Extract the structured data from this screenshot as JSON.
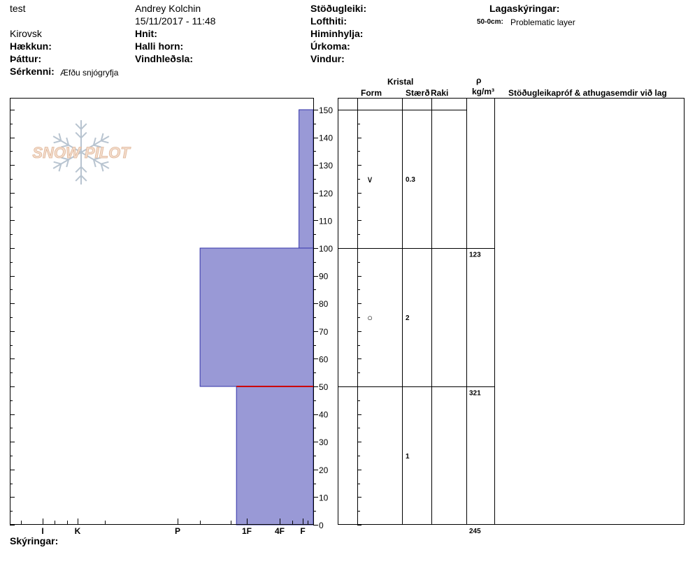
{
  "header": {
    "site": "test",
    "observer": "Andrey Kolchin",
    "datetime": "15/11/2017 - 11:48",
    "location": "Kirovsk",
    "elevation_label": "Hækkun:",
    "aspect_label": "Þáttur:",
    "features_label": "Sérkenni:",
    "features_value": "Æfðu snjógryfja",
    "coords_label": "Hnit:",
    "slope_label": "Halli horn:",
    "wind_loading_label": "Vindhleðsla:",
    "stability_label": "Stöðugleiki:",
    "air_temp_label": "Lofthiti:",
    "sky_label": "Himinhylja:",
    "precip_label": "Úrkoma:",
    "wind_label": "Vindur:",
    "legend_title": "Lagaskýringar:",
    "legend_range": "50-0cm:",
    "legend_text": "Problematic layer"
  },
  "columns": {
    "kristal": "Kristal",
    "form": "Form",
    "size": "Stærð",
    "wetness": "Raki",
    "rho": "ρ",
    "density_unit": "kg/m³",
    "comments": "Stöðugleikapróf & athugasemdir við lag"
  },
  "footer": {
    "notes_label": "Skýringar:"
  },
  "logo": {
    "text": "SNOW PILOT"
  },
  "colors": {
    "layer_fill": "#9999d6",
    "layer_stroke": "#3333aa",
    "problem_line": "#cc0000"
  },
  "chart_data": {
    "type": "bar",
    "title": "",
    "y_axis": {
      "min": 0,
      "max": 150,
      "major_step": 10,
      "minor_step": 5,
      "labels": [
        "0",
        "10",
        "20",
        "30",
        "40",
        "50",
        "60",
        "70",
        "80",
        "90",
        "100",
        "110",
        "120",
        "130",
        "140",
        "150"
      ]
    },
    "hardness_scale": [
      "I",
      "K",
      "P",
      "1F",
      "4F",
      "F"
    ],
    "layers": [
      {
        "top": 150,
        "bottom": 100,
        "hardness": "F",
        "hardness_fraction": 0.047,
        "form_symbol": "∨",
        "size": "0.3",
        "density": ""
      },
      {
        "top": 100,
        "bottom": 50,
        "hardness": "P+",
        "hardness_fraction": 0.373,
        "form_symbol": "○",
        "size": "2",
        "density": "123"
      },
      {
        "top": 50,
        "bottom": 0,
        "hardness": "1F",
        "hardness_fraction": 0.253,
        "form_symbol": "",
        "size": "1",
        "density": "321"
      }
    ],
    "bottom_density": "245",
    "problem_layer_depth": 50
  }
}
